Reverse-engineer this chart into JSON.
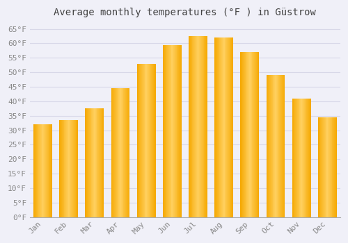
{
  "title": "Average monthly temperatures (°F ) in Güstrow",
  "months": [
    "Jan",
    "Feb",
    "Mar",
    "Apr",
    "May",
    "Jun",
    "Jul",
    "Aug",
    "Sep",
    "Oct",
    "Nov",
    "Dec"
  ],
  "values": [
    32,
    33.5,
    37.5,
    44.5,
    53,
    59.5,
    62.5,
    62,
    57,
    49,
    41,
    34.5
  ],
  "bar_color_center": "#FFD060",
  "bar_color_edge": "#F5A800",
  "background_color": "#f0f0f8",
  "plot_bg_color": "#f0f0f8",
  "grid_color": "#d8d8e8",
  "text_color": "#888888",
  "title_color": "#444444",
  "ylim": [
    0,
    67
  ],
  "ytick_step": 5,
  "ytick_max": 65,
  "title_fontsize": 10,
  "tick_fontsize": 8,
  "font_family": "monospace"
}
